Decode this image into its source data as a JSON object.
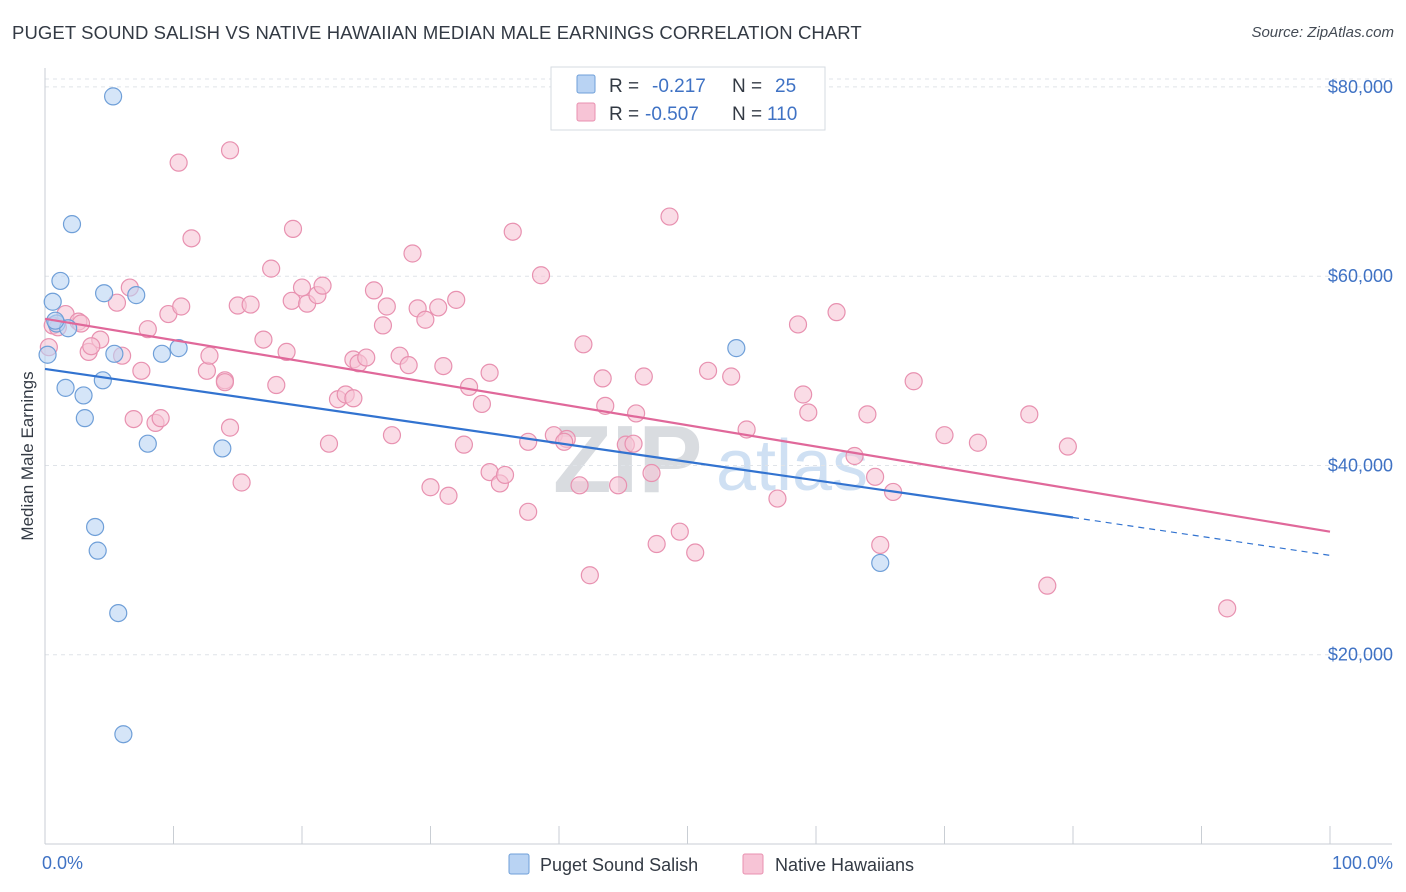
{
  "title": "PUGET SOUND SALISH VS NATIVE HAWAIIAN MEDIAN MALE EARNINGS CORRELATION CHART",
  "source": "Source: ZipAtlas.com",
  "watermark": {
    "zip": "ZIP",
    "atlas": "atlas"
  },
  "colors": {
    "series1_fill": "#b9d3f3",
    "series1_stroke": "#6f9fd8",
    "series1_line": "#3273d0",
    "series2_fill": "#f7c4d6",
    "series2_stroke": "#e891b0",
    "series2_line": "#e0689a",
    "tick_text": "#3f72c4",
    "grid": "#dfe3e8"
  },
  "legend": {
    "rows": [
      {
        "r_label": "R =",
        "r_value": "-0.217",
        "n_label": "N =",
        "n_value": "25"
      },
      {
        "r_label": "R =",
        "r_value": "-0.507",
        "n_label": "N =",
        "n_value": "110"
      }
    ]
  },
  "bottom_legend": [
    "Puget Sound Salish",
    "Native Hawaiians"
  ],
  "chart_data": {
    "type": "scatter",
    "title": "PUGET SOUND SALISH VS NATIVE HAWAIIAN MEDIAN MALE EARNINGS CORRELATION CHART",
    "xlabel": "",
    "ylabel": "Median Male Earnings",
    "xlim": [
      0,
      100
    ],
    "ylim": [
      0,
      82000
    ],
    "x_tick_labels": [
      "0.0%",
      "100.0%"
    ],
    "y_ticks": [
      20000,
      40000,
      60000,
      80000
    ],
    "y_tick_labels": [
      "$20,000",
      "$40,000",
      "$60,000",
      "$80,000"
    ],
    "grid": true,
    "legend_position": "top-center",
    "series": [
      {
        "name": "Puget Sound Salish",
        "trend": {
          "x0": 0,
          "y0": 50200,
          "x1": 80,
          "y1": 34500,
          "dashed_to_x": 100,
          "dashed_to_y": 30500
        },
        "points": [
          [
            5.3,
            79000
          ],
          [
            2.1,
            65500
          ],
          [
            1.2,
            59500
          ],
          [
            4.6,
            58200
          ],
          [
            7.1,
            58000
          ],
          [
            0.6,
            57300
          ],
          [
            0.9,
            55000
          ],
          [
            1.8,
            54500
          ],
          [
            0.2,
            51700
          ],
          [
            5.4,
            51800
          ],
          [
            9.1,
            51800
          ],
          [
            10.4,
            52400
          ],
          [
            1.6,
            48200
          ],
          [
            3.0,
            47400
          ],
          [
            4.5,
            49000
          ],
          [
            3.1,
            45000
          ],
          [
            8.0,
            42300
          ],
          [
            13.8,
            41800
          ],
          [
            53.8,
            52400
          ],
          [
            3.9,
            33500
          ],
          [
            4.1,
            31000
          ],
          [
            5.7,
            24400
          ],
          [
            6.1,
            11600
          ],
          [
            65.0,
            29700
          ],
          [
            0.8,
            55300
          ]
        ]
      },
      {
        "name": "Native Hawaiians",
        "trend": {
          "x0": 0,
          "y0": 55500,
          "x1": 100,
          "y1": 33000
        },
        "points": [
          [
            0.3,
            52500
          ],
          [
            0.6,
            54800
          ],
          [
            1.6,
            56000
          ],
          [
            2.6,
            55200
          ],
          [
            3.4,
            52000
          ],
          [
            4.3,
            53300
          ],
          [
            3.6,
            52600
          ],
          [
            5.6,
            57200
          ],
          [
            6.6,
            58800
          ],
          [
            6.0,
            51600
          ],
          [
            8.0,
            54400
          ],
          [
            7.5,
            50000
          ],
          [
            9.6,
            56000
          ],
          [
            10.6,
            56800
          ],
          [
            10.4,
            72000
          ],
          [
            11.4,
            64000
          ],
          [
            14.4,
            73300
          ],
          [
            12.6,
            50000
          ],
          [
            12.8,
            51600
          ],
          [
            14.0,
            49000
          ],
          [
            14.0,
            48800
          ],
          [
            14.4,
            44000
          ],
          [
            15.0,
            56900
          ],
          [
            16.0,
            57000
          ],
          [
            17.0,
            53300
          ],
          [
            17.6,
            60800
          ],
          [
            18.0,
            48500
          ],
          [
            18.8,
            52000
          ],
          [
            19.2,
            57400
          ],
          [
            19.3,
            65000
          ],
          [
            20.0,
            58800
          ],
          [
            20.4,
            57100
          ],
          [
            21.2,
            58000
          ],
          [
            21.6,
            59000
          ],
          [
            22.1,
            42300
          ],
          [
            22.8,
            47000
          ],
          [
            23.4,
            47500
          ],
          [
            24.0,
            47100
          ],
          [
            24.0,
            51200
          ],
          [
            24.4,
            50800
          ],
          [
            25.0,
            51400
          ],
          [
            25.6,
            58500
          ],
          [
            26.3,
            54800
          ],
          [
            26.6,
            56800
          ],
          [
            27.0,
            43200
          ],
          [
            27.6,
            51600
          ],
          [
            28.3,
            50600
          ],
          [
            28.6,
            62400
          ],
          [
            29.0,
            56600
          ],
          [
            29.6,
            55400
          ],
          [
            30.0,
            37700
          ],
          [
            30.6,
            56700
          ],
          [
            31.0,
            50500
          ],
          [
            31.4,
            36800
          ],
          [
            32.0,
            57500
          ],
          [
            32.6,
            42200
          ],
          [
            33.0,
            48300
          ],
          [
            34.0,
            46500
          ],
          [
            34.6,
            39300
          ],
          [
            34.6,
            49800
          ],
          [
            35.4,
            38100
          ],
          [
            35.8,
            39000
          ],
          [
            36.4,
            64700
          ],
          [
            37.6,
            42500
          ],
          [
            37.6,
            35100
          ],
          [
            38.6,
            60100
          ],
          [
            39.6,
            43200
          ],
          [
            40.6,
            42800
          ],
          [
            40.4,
            42500
          ],
          [
            41.6,
            37900
          ],
          [
            41.9,
            52800
          ],
          [
            42.4,
            28400
          ],
          [
            43.4,
            49200
          ],
          [
            43.6,
            46300
          ],
          [
            44.6,
            37900
          ],
          [
            45.2,
            42200
          ],
          [
            45.8,
            42300
          ],
          [
            46.0,
            45500
          ],
          [
            46.6,
            49400
          ],
          [
            47.2,
            39200
          ],
          [
            47.6,
            31700
          ],
          [
            48.6,
            66300
          ],
          [
            49.4,
            33000
          ],
          [
            50.6,
            30800
          ],
          [
            51.6,
            50000
          ],
          [
            53.4,
            49400
          ],
          [
            54.6,
            43800
          ],
          [
            57.0,
            36500
          ],
          [
            58.6,
            54900
          ],
          [
            59.0,
            47500
          ],
          [
            59.4,
            45600
          ],
          [
            61.6,
            56200
          ],
          [
            63.0,
            41000
          ],
          [
            64.0,
            45400
          ],
          [
            64.6,
            38800
          ],
          [
            65.0,
            31600
          ],
          [
            66.0,
            37200
          ],
          [
            67.6,
            48900
          ],
          [
            70.0,
            43200
          ],
          [
            72.6,
            42400
          ],
          [
            76.6,
            45400
          ],
          [
            78.0,
            27300
          ],
          [
            79.6,
            42000
          ],
          [
            92.0,
            24900
          ],
          [
            6.9,
            44900
          ],
          [
            8.6,
            44500
          ],
          [
            9.0,
            45000
          ],
          [
            2.8,
            55000
          ],
          [
            1.0,
            54600
          ],
          [
            15.3,
            38200
          ]
        ]
      }
    ]
  }
}
